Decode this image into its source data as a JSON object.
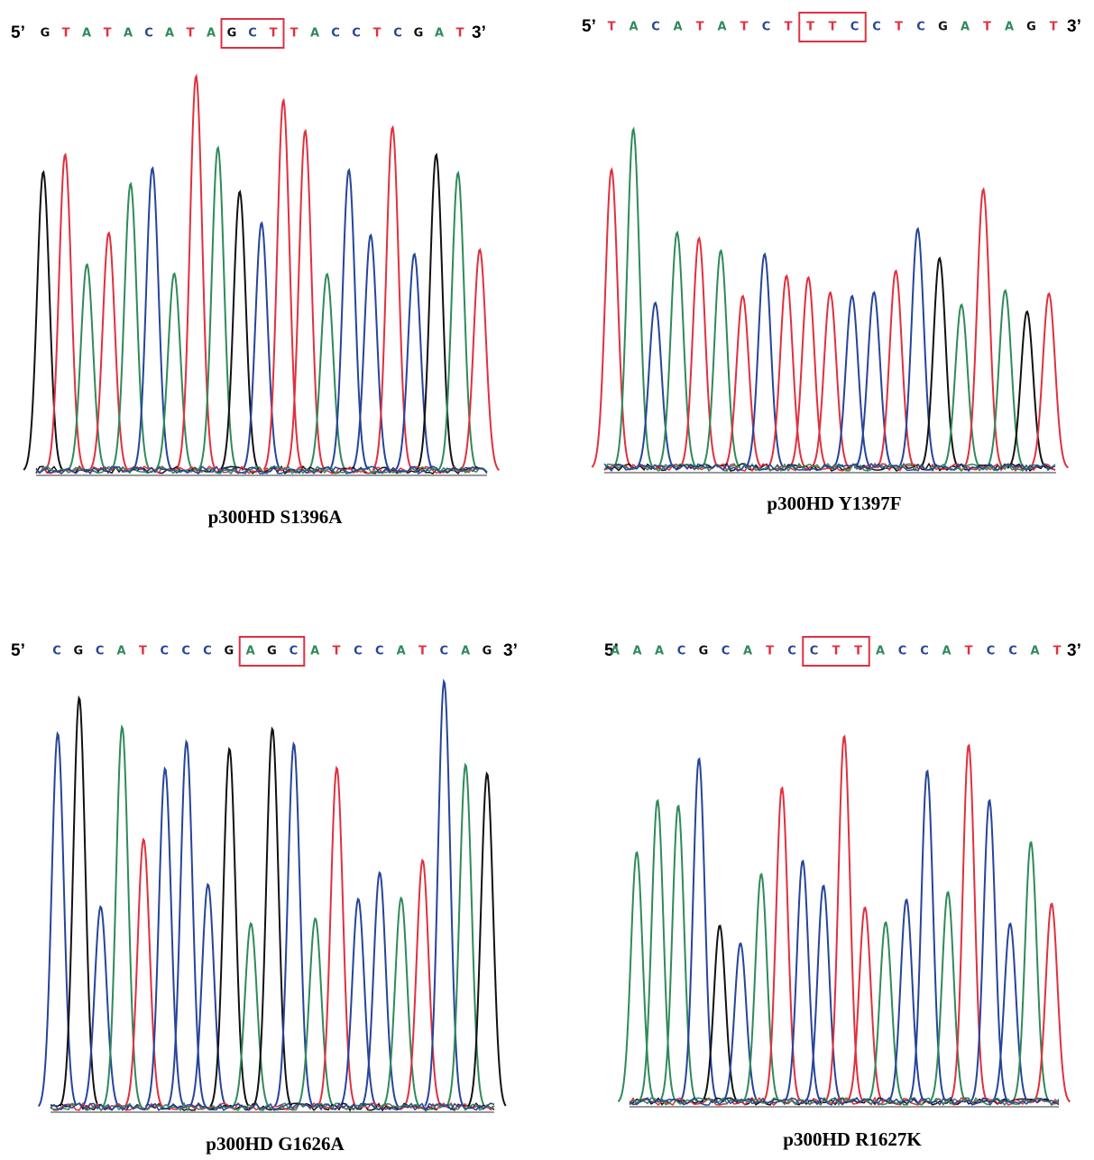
{
  "panels": [
    {
      "five_prime": "5’",
      "three_prime": "3’",
      "sequence": [
        "G",
        "T",
        "A",
        "T",
        "A",
        "C",
        "A",
        "T",
        "A",
        "G",
        "C",
        "T",
        "T",
        "A",
        "C",
        "C",
        "T",
        "C",
        "G",
        "A",
        "T"
      ],
      "label": "p300HD S1396A"
    },
    {
      "five_prime": "5’",
      "three_prime": "3’",
      "sequence": [
        "T",
        "A",
        "C",
        "A",
        "T",
        "A",
        "T",
        "C",
        "T",
        "T",
        "T",
        "C",
        "C",
        "T",
        "C",
        "G",
        "A",
        "T",
        "A",
        "G",
        "T"
      ],
      "label": "p300HD Y1397F"
    },
    {
      "five_prime": "5’",
      "three_prime": "3’",
      "sequence": [
        "C",
        "G",
        "C",
        "A",
        "T",
        "C",
        "C",
        "C",
        "G",
        "A",
        "G",
        "C",
        "A",
        "T",
        "C",
        "C",
        "A",
        "T",
        "C",
        "A",
        "G"
      ],
      "label": "p300HD G1626A"
    },
    {
      "five_prime": "5’",
      "three_prime": "3’",
      "sequence": [
        "A",
        "A",
        "A",
        "C",
        "G",
        "C",
        "A",
        "T",
        "C",
        "C",
        "T",
        "T",
        "A",
        "C",
        "C",
        "A",
        "T",
        "C",
        "C",
        "A",
        "T"
      ],
      "label": "p300HD R1627K"
    }
  ]
}
